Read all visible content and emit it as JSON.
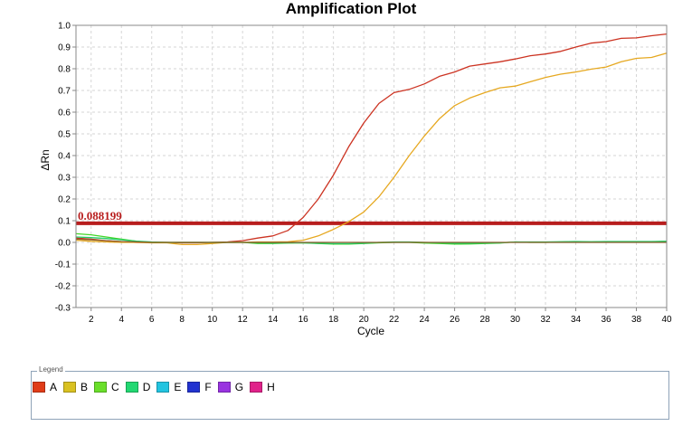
{
  "chart_data": {
    "type": "line",
    "title": "Amplification Plot",
    "xlabel": "Cycle",
    "ylabel": "ΔRn",
    "xlim": [
      1,
      40
    ],
    "ylim": [
      -0.3,
      1.0
    ],
    "xticks": [
      2,
      4,
      6,
      8,
      10,
      12,
      14,
      16,
      18,
      20,
      22,
      24,
      26,
      28,
      30,
      32,
      34,
      36,
      38,
      40
    ],
    "yticks": [
      "1.0",
      "0.9",
      "0.8",
      "0.7",
      "0.6",
      "0.5",
      "0.4",
      "0.3",
      "0.2",
      "0.1",
      "0.0",
      "-0.1",
      "-0.2",
      "-0.3"
    ],
    "grid": true,
    "threshold": {
      "value": 0.088199,
      "label": "0.088199",
      "color": "#b81e1e"
    },
    "x": [
      1,
      2,
      3,
      4,
      5,
      6,
      7,
      8,
      9,
      10,
      11,
      12,
      13,
      14,
      15,
      16,
      17,
      18,
      19,
      20,
      21,
      22,
      23,
      24,
      25,
      26,
      27,
      28,
      29,
      30,
      31,
      32,
      33,
      34,
      35,
      36,
      37,
      38,
      39,
      40
    ],
    "series": [
      {
        "color": "#cc3322",
        "values": [
          0.02,
          0.015,
          0.008,
          0.003,
          0.0,
          0.0,
          0.0,
          -0.002,
          -0.002,
          0.0,
          0.002,
          0.008,
          0.02,
          0.03,
          0.055,
          0.115,
          0.2,
          0.31,
          0.44,
          0.55,
          0.64,
          0.69,
          0.705,
          0.73,
          0.765,
          0.785,
          0.812,
          0.822,
          0.832,
          0.845,
          0.86,
          0.868,
          0.88,
          0.9,
          0.918,
          0.925,
          0.94,
          0.942,
          0.952,
          0.96
        ]
      },
      {
        "color": "#e6a820",
        "values": [
          0.01,
          0.005,
          0.002,
          0.0,
          0.0,
          -0.002,
          -0.002,
          -0.01,
          -0.01,
          -0.005,
          0.0,
          0.0,
          0.002,
          0.002,
          0.003,
          0.01,
          0.03,
          0.06,
          0.095,
          0.14,
          0.21,
          0.3,
          0.4,
          0.49,
          0.57,
          0.63,
          0.665,
          0.69,
          0.712,
          0.72,
          0.74,
          0.76,
          0.775,
          0.785,
          0.798,
          0.808,
          0.832,
          0.848,
          0.852,
          0.872
        ]
      },
      {
        "color": "#44d628",
        "values": [
          0.04,
          0.035,
          0.025,
          0.015,
          0.005,
          0.0,
          0.0,
          0.0,
          0.0,
          0.0,
          0.0,
          0.0,
          -0.005,
          -0.005,
          -0.003,
          -0.002,
          -0.005,
          -0.008,
          -0.008,
          -0.005,
          -0.002,
          0.0,
          0.0,
          -0.003,
          -0.005,
          -0.008,
          -0.007,
          -0.005,
          -0.003,
          0.002,
          0.0,
          0.0,
          0.002,
          0.003,
          0.002,
          0.003,
          0.003,
          0.003,
          0.003,
          0.005
        ]
      },
      {
        "color": "#22cc66",
        "values": [
          0.025,
          0.022,
          0.018,
          0.012,
          0.006,
          0.002,
          0.0,
          0.0,
          0.0,
          0.0,
          0.0,
          0.0,
          -0.002,
          -0.003,
          -0.002,
          -0.002,
          -0.004,
          -0.006,
          -0.006,
          -0.004,
          0.0,
          0.002,
          0.002,
          0.0,
          -0.002,
          -0.004,
          -0.004,
          -0.003,
          -0.002,
          0.002,
          0.002,
          0.002,
          0.003,
          0.004,
          0.003,
          0.004,
          0.004,
          0.004,
          0.004,
          0.005
        ]
      },
      {
        "color": "#8a5a2a",
        "values": [
          0.015,
          0.012,
          0.008,
          0.004,
          0.002,
          0.0,
          0.0,
          0.0,
          0.0,
          0.0,
          0.0,
          0.0,
          0.0,
          0.0,
          0.0,
          0.0,
          0.0,
          0.0,
          0.0,
          0.0,
          0.0,
          0.0,
          0.0,
          0.0,
          0.0,
          0.0,
          0.0,
          0.0,
          0.0,
          0.0,
          0.0,
          0.0,
          0.0,
          0.0,
          0.0,
          0.0,
          0.0,
          0.0,
          0.0,
          0.0
        ]
      }
    ]
  },
  "legend": {
    "title": "Legend",
    "items": [
      {
        "label": "A",
        "color": "#e03c18"
      },
      {
        "label": "B",
        "color": "#d9c121"
      },
      {
        "label": "C",
        "color": "#6adf2a"
      },
      {
        "label": "D",
        "color": "#22d872"
      },
      {
        "label": "E",
        "color": "#22c4e0"
      },
      {
        "label": "F",
        "color": "#2233d0"
      },
      {
        "label": "G",
        "color": "#9933e0"
      },
      {
        "label": "H",
        "color": "#e0228a"
      }
    ]
  }
}
